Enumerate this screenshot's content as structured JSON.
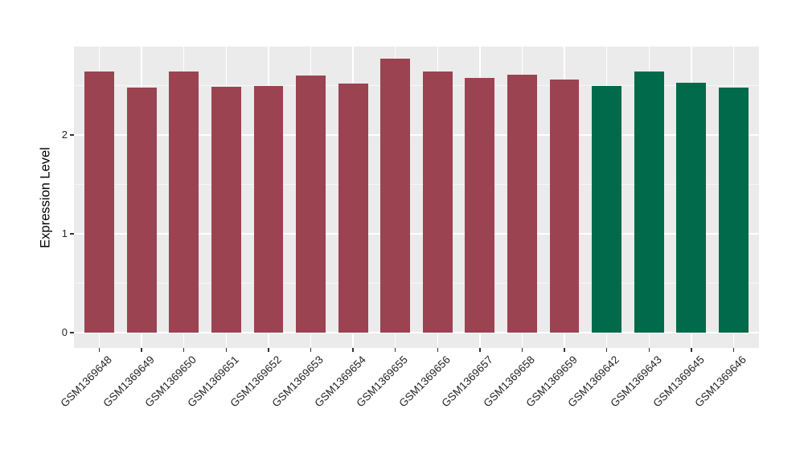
{
  "chart_data": {
    "type": "bar",
    "title": "",
    "xlabel": "",
    "ylabel": "Expression Level",
    "categories": [
      "GSM1369648",
      "GSM1369649",
      "GSM1369650",
      "GSM1369651",
      "GSM1369652",
      "GSM1369653",
      "GSM1369654",
      "GSM1369655",
      "GSM1369656",
      "GSM1369657",
      "GSM1369658",
      "GSM1369659",
      "GSM1369642",
      "GSM1369643",
      "GSM1369645",
      "GSM1369646"
    ],
    "values": [
      2.64,
      2.48,
      2.64,
      2.49,
      2.5,
      2.6,
      2.52,
      2.77,
      2.64,
      2.58,
      2.61,
      2.56,
      2.5,
      2.64,
      2.53,
      2.48
    ],
    "bar_groups": [
      "red",
      "red",
      "red",
      "red",
      "red",
      "red",
      "red",
      "red",
      "red",
      "red",
      "red",
      "red",
      "green",
      "green",
      "green",
      "green"
    ],
    "group_colors": {
      "red": "#9B4351",
      "green": "#006A4A"
    },
    "yticks": [
      0,
      1,
      2
    ],
    "yticks_minor": [
      0.5,
      1.5,
      2.5
    ],
    "ylim": [
      0,
      2.9
    ],
    "bar_width_fraction": 0.7,
    "grid": true,
    "legend_position": "none",
    "panel_background": "#EBEBEB",
    "gridline_color": "#FFFFFF",
    "x_tick_rotation_deg": -45
  }
}
